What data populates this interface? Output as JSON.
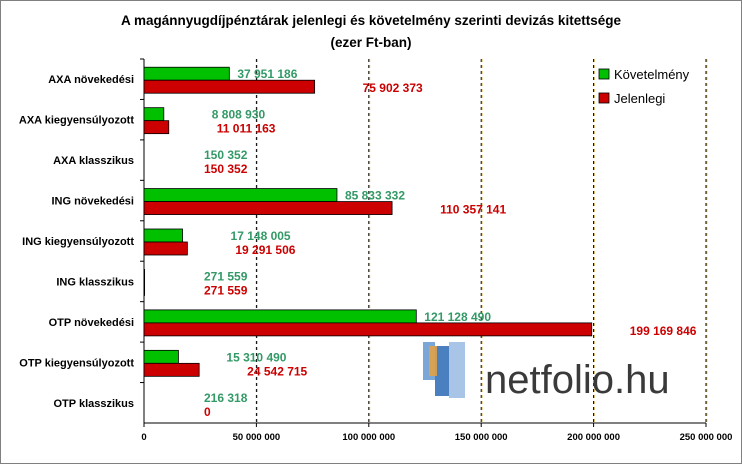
{
  "colors": {
    "green": "#00c000",
    "red": "#cc0000",
    "green_label": "#339966",
    "red_label": "#cc0000",
    "grid": "#000000",
    "grid_highlight": "#d4a017"
  },
  "logo": {
    "text": "netfolio.hu"
  },
  "chart_data": {
    "type": "bar",
    "orientation": "horizontal",
    "title": "A magánnyugdíjpénztárak jelenlegi és követelmény szerinti devizás kitettsége",
    "subtitle": "(ezer Ft-ban)",
    "xlabel": "",
    "ylabel": "",
    "xlim": [
      0,
      250000000
    ],
    "x_ticks": [
      0,
      50000000,
      100000000,
      150000000,
      200000000,
      250000000
    ],
    "x_tick_labels": [
      "0",
      "50 000 000",
      "100 000 000",
      "150 000 000",
      "200 000 000",
      "250 000 000"
    ],
    "grid": true,
    "legend_position": "top-right",
    "categories": [
      "AXA növekedési",
      "AXA kiegyensúlyozott",
      "AXA klasszikus",
      "ING növekedési",
      "ING kiegyensúlyozott",
      "ING klasszikus",
      "OTP növekedési",
      "OTP kiegyensúlyozott",
      "OTP klasszikus"
    ],
    "series": [
      {
        "name": "Követelmény",
        "color": "#00c000",
        "values": [
          37951186,
          8808930,
          150352,
          85833332,
          17148005,
          271559,
          121128490,
          15310490,
          216318
        ],
        "labels": [
          "37 951 186",
          "8 808 930",
          "150 352",
          "85 833 332",
          "17 148 005",
          "271 559",
          "121 128 490",
          "15 310 490",
          "216 318"
        ]
      },
      {
        "name": "Jelenlegi",
        "color": "#cc0000",
        "values": [
          75902373,
          11011163,
          150352,
          110357141,
          19291506,
          271559,
          199169846,
          24542715,
          0
        ],
        "labels": [
          "75 902 373",
          "11 011 163",
          "150 352",
          "110 357 141",
          "19 291 506",
          "271 559",
          "199 169 846",
          "24 542 715",
          "0"
        ]
      }
    ]
  }
}
